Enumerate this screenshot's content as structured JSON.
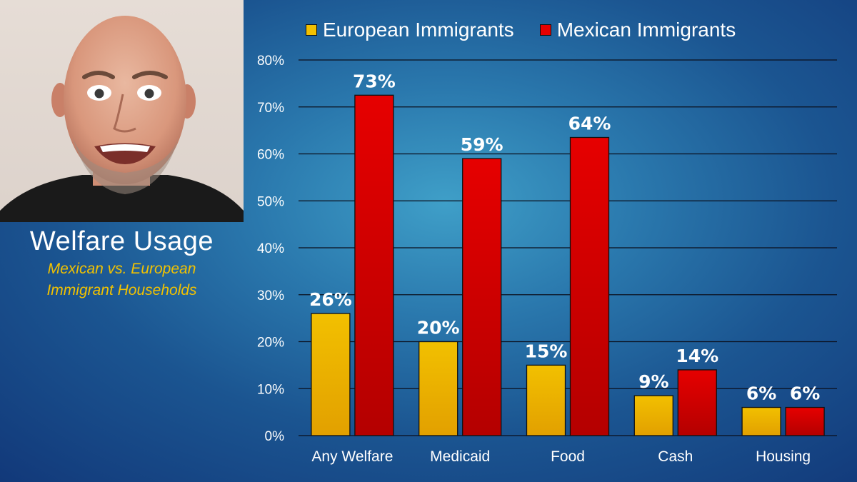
{
  "side_panel": {
    "title": "Welfare Usage",
    "subtitle_line1": "Mexican vs. European",
    "subtitle_line2": "Immigrant Households"
  },
  "colors": {
    "european": "#f2c000",
    "mexican": "#e60000",
    "gridline": "#0b0f1c"
  },
  "chart_data": {
    "type": "bar",
    "title": "",
    "xlabel": "",
    "ylabel": "",
    "ylim": [
      0,
      80
    ],
    "yticks": [
      0,
      10,
      20,
      30,
      40,
      50,
      60,
      70,
      80
    ],
    "ytick_format": "%",
    "grid": true,
    "legend_position": "top",
    "categories": [
      "Any Welfare",
      "Medicaid",
      "Food",
      "Cash",
      "Housing"
    ],
    "series": [
      {
        "name": "European Immigrants",
        "values": [
          26,
          20,
          15,
          8.5,
          6
        ],
        "labels": [
          "26%",
          "20%",
          "15%",
          "9%",
          "6%"
        ]
      },
      {
        "name": "Mexican Immigrants",
        "values": [
          72.5,
          59,
          63.5,
          14,
          6
        ],
        "labels": [
          "73%",
          "59%",
          "64%",
          "14%",
          "6%"
        ]
      }
    ]
  }
}
